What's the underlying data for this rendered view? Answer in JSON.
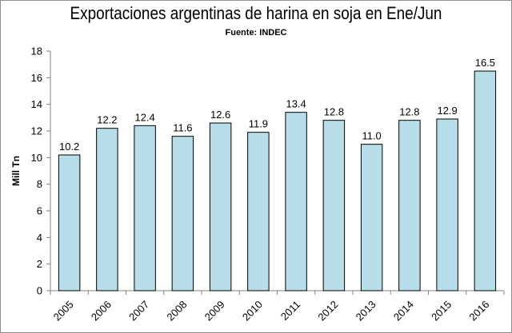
{
  "chart_data": {
    "type": "bar",
    "title": "Exportaciones argentinas de harina en soja en Ene/Jun",
    "subtitle": "Fuente: INDEC",
    "xlabel": "",
    "ylabel": "Mill Tn",
    "categories": [
      "2005",
      "2006",
      "2007",
      "2008",
      "2009",
      "2010",
      "2011",
      "2012",
      "2013",
      "2014",
      "2015",
      "2016"
    ],
    "values": [
      10.2,
      12.2,
      12.4,
      11.6,
      12.6,
      11.9,
      13.4,
      12.8,
      11.0,
      12.8,
      12.9,
      16.5
    ],
    "data_labels": [
      "10.2",
      "12.2",
      "12.4",
      "11.6",
      "12.6",
      "11.9",
      "13.4",
      "12.8",
      "11.0",
      "12.8",
      "12.9",
      "16.5"
    ],
    "yticks": [
      "0",
      "2",
      "4",
      "6",
      "8",
      "10",
      "12",
      "14",
      "16",
      "18"
    ],
    "ylim": [
      0,
      18
    ],
    "grid": false,
    "legend": "none",
    "bar_color": "#b7dde8",
    "bar_edge_color": "#000000"
  }
}
